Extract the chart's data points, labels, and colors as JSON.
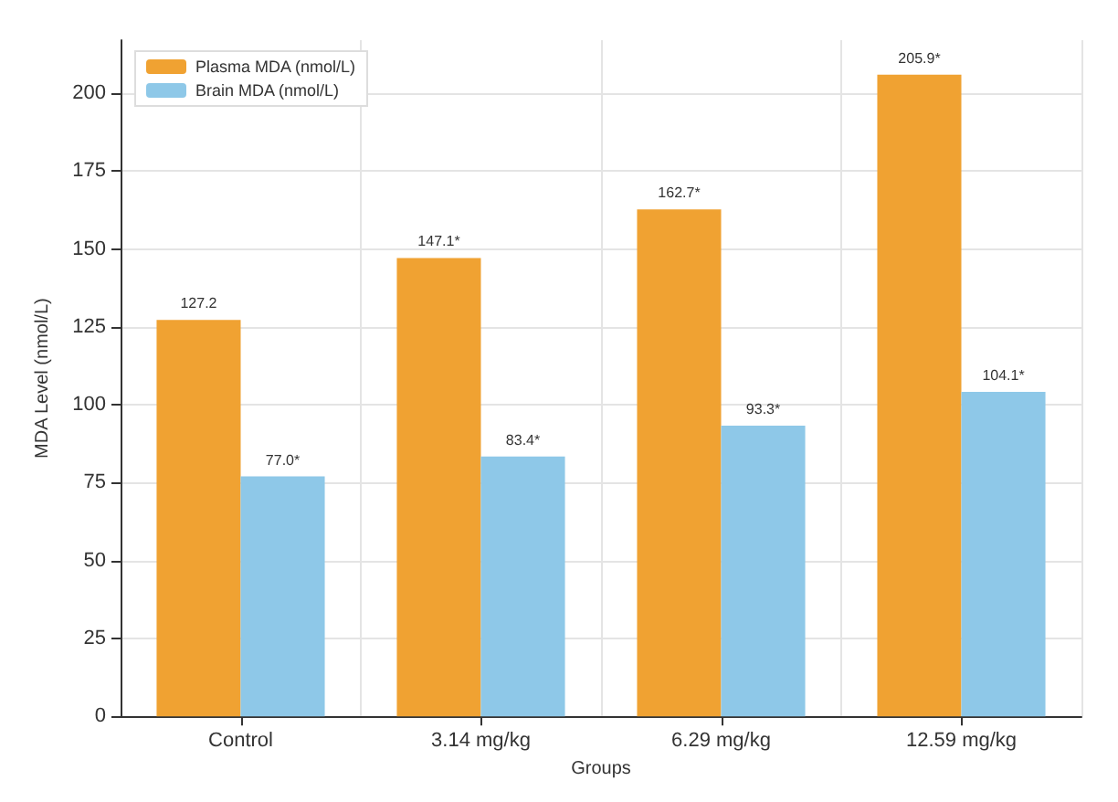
{
  "chart_data": {
    "type": "bar",
    "xlabel": "Groups",
    "ylabel": "MDA Level (nmol/L)",
    "categories": [
      "Control",
      "3.14 mg/kg",
      "6.29 mg/kg",
      "12.59 mg/kg"
    ],
    "series": [
      {
        "name": "Plasma MDA (nmol/L)",
        "color": "#f0a232",
        "values": [
          127.2,
          147.1,
          162.7,
          205.9
        ],
        "value_labels": [
          "127.2",
          "147.1*",
          "162.7*",
          "205.9*"
        ]
      },
      {
        "name": "Brain MDA (nmol/L)",
        "color": "#8ec8e8",
        "values": [
          77.0,
          83.4,
          93.3,
          104.1
        ],
        "value_labels": [
          "77.0*",
          "83.4*",
          "93.3*",
          "104.1*"
        ]
      }
    ],
    "ylim": [
      0,
      217
    ],
    "yticks": [
      0,
      25,
      50,
      75,
      100,
      125,
      150,
      175,
      200
    ],
    "grid": true,
    "legend": "top left"
  }
}
